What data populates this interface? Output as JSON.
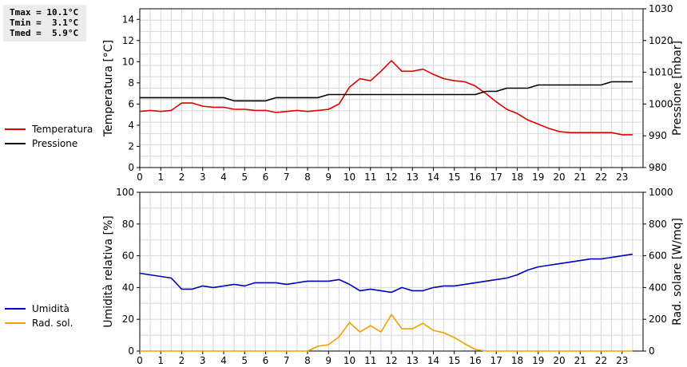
{
  "stats": {
    "lines": [
      "Tmax = 10.1°C",
      "Tmin =  3.1°C",
      "Tmed =  5.9°C"
    ]
  },
  "legend_top": [
    {
      "label": "Temperatura",
      "color": "#dd0000"
    },
    {
      "label": "Pressione",
      "color": "#000000"
    }
  ],
  "legend_bottom": [
    {
      "label": "Umidità",
      "color": "#0000bb"
    },
    {
      "label": "Rad. sol.",
      "color": "#f0a000"
    }
  ],
  "chart_data": [
    {
      "type": "line",
      "x_ticks": [
        "0",
        "1",
        "2",
        "3",
        "4",
        "5",
        "6",
        "7",
        "8",
        "9",
        "10",
        "11",
        "12",
        "13",
        "14",
        "15",
        "16",
        "17",
        "18",
        "19",
        "20",
        "21",
        "22",
        "23"
      ],
      "xlim": [
        0,
        24
      ],
      "ylabel": "Temperatura [°C]",
      "ylim": [
        0,
        15
      ],
      "y_ticks": [
        0,
        2,
        4,
        6,
        8,
        10,
        12,
        14
      ],
      "ylabel2": "Pressione [mbar]",
      "ylim2": [
        980,
        1030
      ],
      "y2_ticks": [
        980,
        990,
        1000,
        1010,
        1020,
        1030
      ],
      "grid": true,
      "series": [
        {
          "name": "Temperatura",
          "axis": "left",
          "color": "#dd0000",
          "x": [
            0,
            0.5,
            1,
            1.5,
            2,
            2.5,
            3,
            3.5,
            4,
            4.5,
            5,
            5.5,
            6,
            6.5,
            7,
            7.5,
            8,
            8.5,
            9,
            9.5,
            10,
            10.5,
            11,
            11.5,
            12,
            12.5,
            13,
            13.5,
            14,
            14.5,
            15,
            15.5,
            16,
            16.5,
            17,
            17.5,
            18,
            18.5,
            19,
            19.5,
            20,
            20.5,
            21,
            21.5,
            22,
            22.5,
            23,
            23.5
          ],
          "y": [
            5.3,
            5.4,
            5.3,
            5.4,
            6.1,
            6.1,
            5.8,
            5.7,
            5.7,
            5.5,
            5.5,
            5.4,
            5.4,
            5.2,
            5.3,
            5.4,
            5.3,
            5.4,
            5.5,
            6.0,
            7.6,
            8.4,
            8.2,
            9.1,
            10.1,
            9.1,
            9.1,
            9.3,
            8.8,
            8.4,
            8.2,
            8.1,
            7.7,
            7.0,
            6.2,
            5.5,
            5.1,
            4.5,
            4.1,
            3.7,
            3.4,
            3.3,
            3.3,
            3.3,
            3.3,
            3.3,
            3.1,
            3.1
          ]
        },
        {
          "name": "Pressione",
          "axis": "right",
          "color": "#000000",
          "x": [
            0,
            0.5,
            1,
            1.5,
            2,
            2.5,
            3,
            3.5,
            4,
            4.5,
            5,
            5.5,
            6,
            6.5,
            7,
            7.5,
            8,
            8.5,
            9,
            9.5,
            10,
            10.5,
            11,
            11.5,
            12,
            12.5,
            13,
            13.5,
            14,
            14.5,
            15,
            15.5,
            16,
            16.5,
            17,
            17.5,
            18,
            18.5,
            19,
            19.5,
            20,
            20.5,
            21,
            21.5,
            22,
            22.5,
            23,
            23.5
          ],
          "y": [
            1002,
            1002,
            1002,
            1002,
            1002,
            1002,
            1002,
            1002,
            1002,
            1001,
            1001,
            1001,
            1001,
            1002,
            1002,
            1002,
            1002,
            1002,
            1003,
            1003,
            1003,
            1003,
            1003,
            1003,
            1003,
            1003,
            1003,
            1003,
            1003,
            1003,
            1003,
            1003,
            1003,
            1004,
            1004,
            1005,
            1005,
            1005,
            1006,
            1006,
            1006,
            1006,
            1006,
            1006,
            1006,
            1007,
            1007,
            1007
          ]
        }
      ]
    },
    {
      "type": "line",
      "x_ticks": [
        "0",
        "1",
        "2",
        "3",
        "4",
        "5",
        "6",
        "7",
        "8",
        "9",
        "10",
        "11",
        "12",
        "13",
        "14",
        "15",
        "16",
        "17",
        "18",
        "19",
        "20",
        "21",
        "22",
        "23"
      ],
      "xlim": [
        0,
        24
      ],
      "ylabel": "Umidità relativa [%]",
      "ylim": [
        0,
        100
      ],
      "y_ticks": [
        0,
        20,
        40,
        60,
        80,
        100
      ],
      "ylabel2": "Rad. solare [W/mq]",
      "ylim2": [
        0,
        1000
      ],
      "y2_ticks": [
        0,
        200,
        400,
        600,
        800,
        1000
      ],
      "grid": true,
      "series": [
        {
          "name": "Umidità",
          "axis": "left",
          "color": "#0000bb",
          "x": [
            0,
            0.5,
            1,
            1.5,
            2,
            2.5,
            3,
            3.5,
            4,
            4.5,
            5,
            5.5,
            6,
            6.5,
            7,
            7.5,
            8,
            8.5,
            9,
            9.5,
            10,
            10.5,
            11,
            11.5,
            12,
            12.5,
            13,
            13.5,
            14,
            14.5,
            15,
            15.5,
            16,
            16.5,
            17,
            17.5,
            18,
            18.5,
            19,
            19.5,
            20,
            20.5,
            21,
            21.5,
            22,
            22.5,
            23,
            23.5
          ],
          "y": [
            49,
            48,
            47,
            46,
            39,
            39,
            41,
            40,
            41,
            42,
            41,
            43,
            43,
            43,
            42,
            43,
            44,
            44,
            44,
            45,
            42,
            38,
            39,
            38,
            37,
            40,
            38,
            38,
            40,
            41,
            41,
            42,
            43,
            44,
            45,
            46,
            48,
            51,
            53,
            54,
            55,
            56,
            57,
            58,
            58,
            59,
            60,
            61
          ]
        },
        {
          "name": "Rad. sol.",
          "axis": "right",
          "color": "#f0a000",
          "x": [
            0,
            0.5,
            1,
            1.5,
            2,
            2.5,
            3,
            3.5,
            4,
            4.5,
            5,
            5.5,
            6,
            6.5,
            7,
            7.5,
            8,
            8.5,
            9,
            9.5,
            10,
            10.5,
            11,
            11.5,
            12,
            12.5,
            13,
            13.5,
            14,
            14.5,
            15,
            15.5,
            16,
            16.5,
            17,
            17.5,
            18,
            18.5,
            19,
            19.5,
            20,
            20.5,
            21,
            21.5,
            22,
            22.5,
            23,
            23.5
          ],
          "y": [
            0,
            0,
            0,
            0,
            0,
            0,
            0,
            0,
            0,
            0,
            0,
            0,
            0,
            0,
            0,
            0,
            0,
            30,
            40,
            90,
            180,
            120,
            160,
            120,
            230,
            140,
            140,
            175,
            130,
            115,
            85,
            45,
            10,
            0,
            0,
            0,
            0,
            0,
            0,
            0,
            0,
            0,
            0,
            0,
            0,
            0,
            0,
            0
          ]
        }
      ]
    }
  ]
}
